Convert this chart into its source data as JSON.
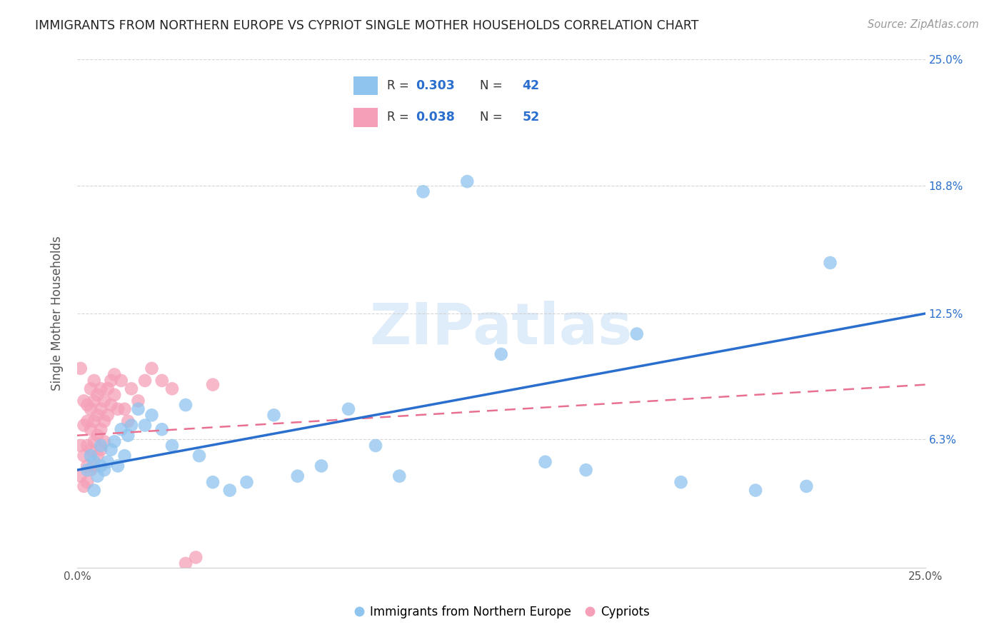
{
  "title": "IMMIGRANTS FROM NORTHERN EUROPE VS CYPRIOT SINGLE MOTHER HOUSEHOLDS CORRELATION CHART",
  "source": "Source: ZipAtlas.com",
  "xlabel_blue": "Immigrants from Northern Europe",
  "xlabel_pink": "Cypriots",
  "ylabel": "Single Mother Households",
  "xlim": [
    0,
    0.25
  ],
  "ylim": [
    0,
    0.25
  ],
  "yticks": [
    0.063,
    0.125,
    0.188,
    0.25
  ],
  "ytick_labels": [
    "6.3%",
    "12.5%",
    "18.8%",
    "25.0%"
  ],
  "blue_color": "#8fc4ee",
  "pink_color": "#f5a0b8",
  "blue_line_color": "#2b6fce",
  "pink_line_color": "#e87090",
  "watermark_text": "ZIPatlas",
  "legend_r_blue": "0.303",
  "legend_n_blue": "42",
  "legend_r_pink": "0.038",
  "legend_n_pink": "52",
  "blue_x": [
    0.003,
    0.004,
    0.005,
    0.005,
    0.006,
    0.007,
    0.007,
    0.008,
    0.009,
    0.01,
    0.011,
    0.012,
    0.013,
    0.014,
    0.015,
    0.016,
    0.018,
    0.02,
    0.022,
    0.025,
    0.028,
    0.032,
    0.036,
    0.04,
    0.045,
    0.05,
    0.058,
    0.065,
    0.072,
    0.08,
    0.088,
    0.095,
    0.102,
    0.115,
    0.125,
    0.138,
    0.15,
    0.165,
    0.178,
    0.2,
    0.215,
    0.222
  ],
  "blue_y": [
    0.048,
    0.055,
    0.038,
    0.052,
    0.045,
    0.06,
    0.05,
    0.048,
    0.052,
    0.058,
    0.062,
    0.05,
    0.068,
    0.055,
    0.065,
    0.07,
    0.078,
    0.07,
    0.075,
    0.068,
    0.06,
    0.08,
    0.055,
    0.042,
    0.038,
    0.042,
    0.075,
    0.045,
    0.05,
    0.078,
    0.06,
    0.045,
    0.185,
    0.19,
    0.105,
    0.052,
    0.048,
    0.115,
    0.042,
    0.038,
    0.04,
    0.15
  ],
  "pink_x": [
    0.001,
    0.001,
    0.001,
    0.002,
    0.002,
    0.002,
    0.002,
    0.003,
    0.003,
    0.003,
    0.003,
    0.003,
    0.004,
    0.004,
    0.004,
    0.004,
    0.004,
    0.005,
    0.005,
    0.005,
    0.005,
    0.005,
    0.006,
    0.006,
    0.006,
    0.006,
    0.007,
    0.007,
    0.007,
    0.007,
    0.008,
    0.008,
    0.008,
    0.009,
    0.009,
    0.01,
    0.01,
    0.011,
    0.011,
    0.012,
    0.013,
    0.014,
    0.015,
    0.016,
    0.018,
    0.02,
    0.022,
    0.025,
    0.028,
    0.032,
    0.035,
    0.04
  ],
  "pink_y": [
    0.098,
    0.06,
    0.045,
    0.055,
    0.07,
    0.082,
    0.04,
    0.05,
    0.06,
    0.072,
    0.08,
    0.042,
    0.058,
    0.068,
    0.078,
    0.088,
    0.048,
    0.062,
    0.072,
    0.082,
    0.092,
    0.05,
    0.065,
    0.075,
    0.085,
    0.055,
    0.068,
    0.078,
    0.088,
    0.058,
    0.072,
    0.082,
    0.062,
    0.075,
    0.088,
    0.08,
    0.092,
    0.085,
    0.095,
    0.078,
    0.092,
    0.078,
    0.072,
    0.088,
    0.082,
    0.092,
    0.098,
    0.092,
    0.088,
    0.002,
    0.005,
    0.09
  ]
}
